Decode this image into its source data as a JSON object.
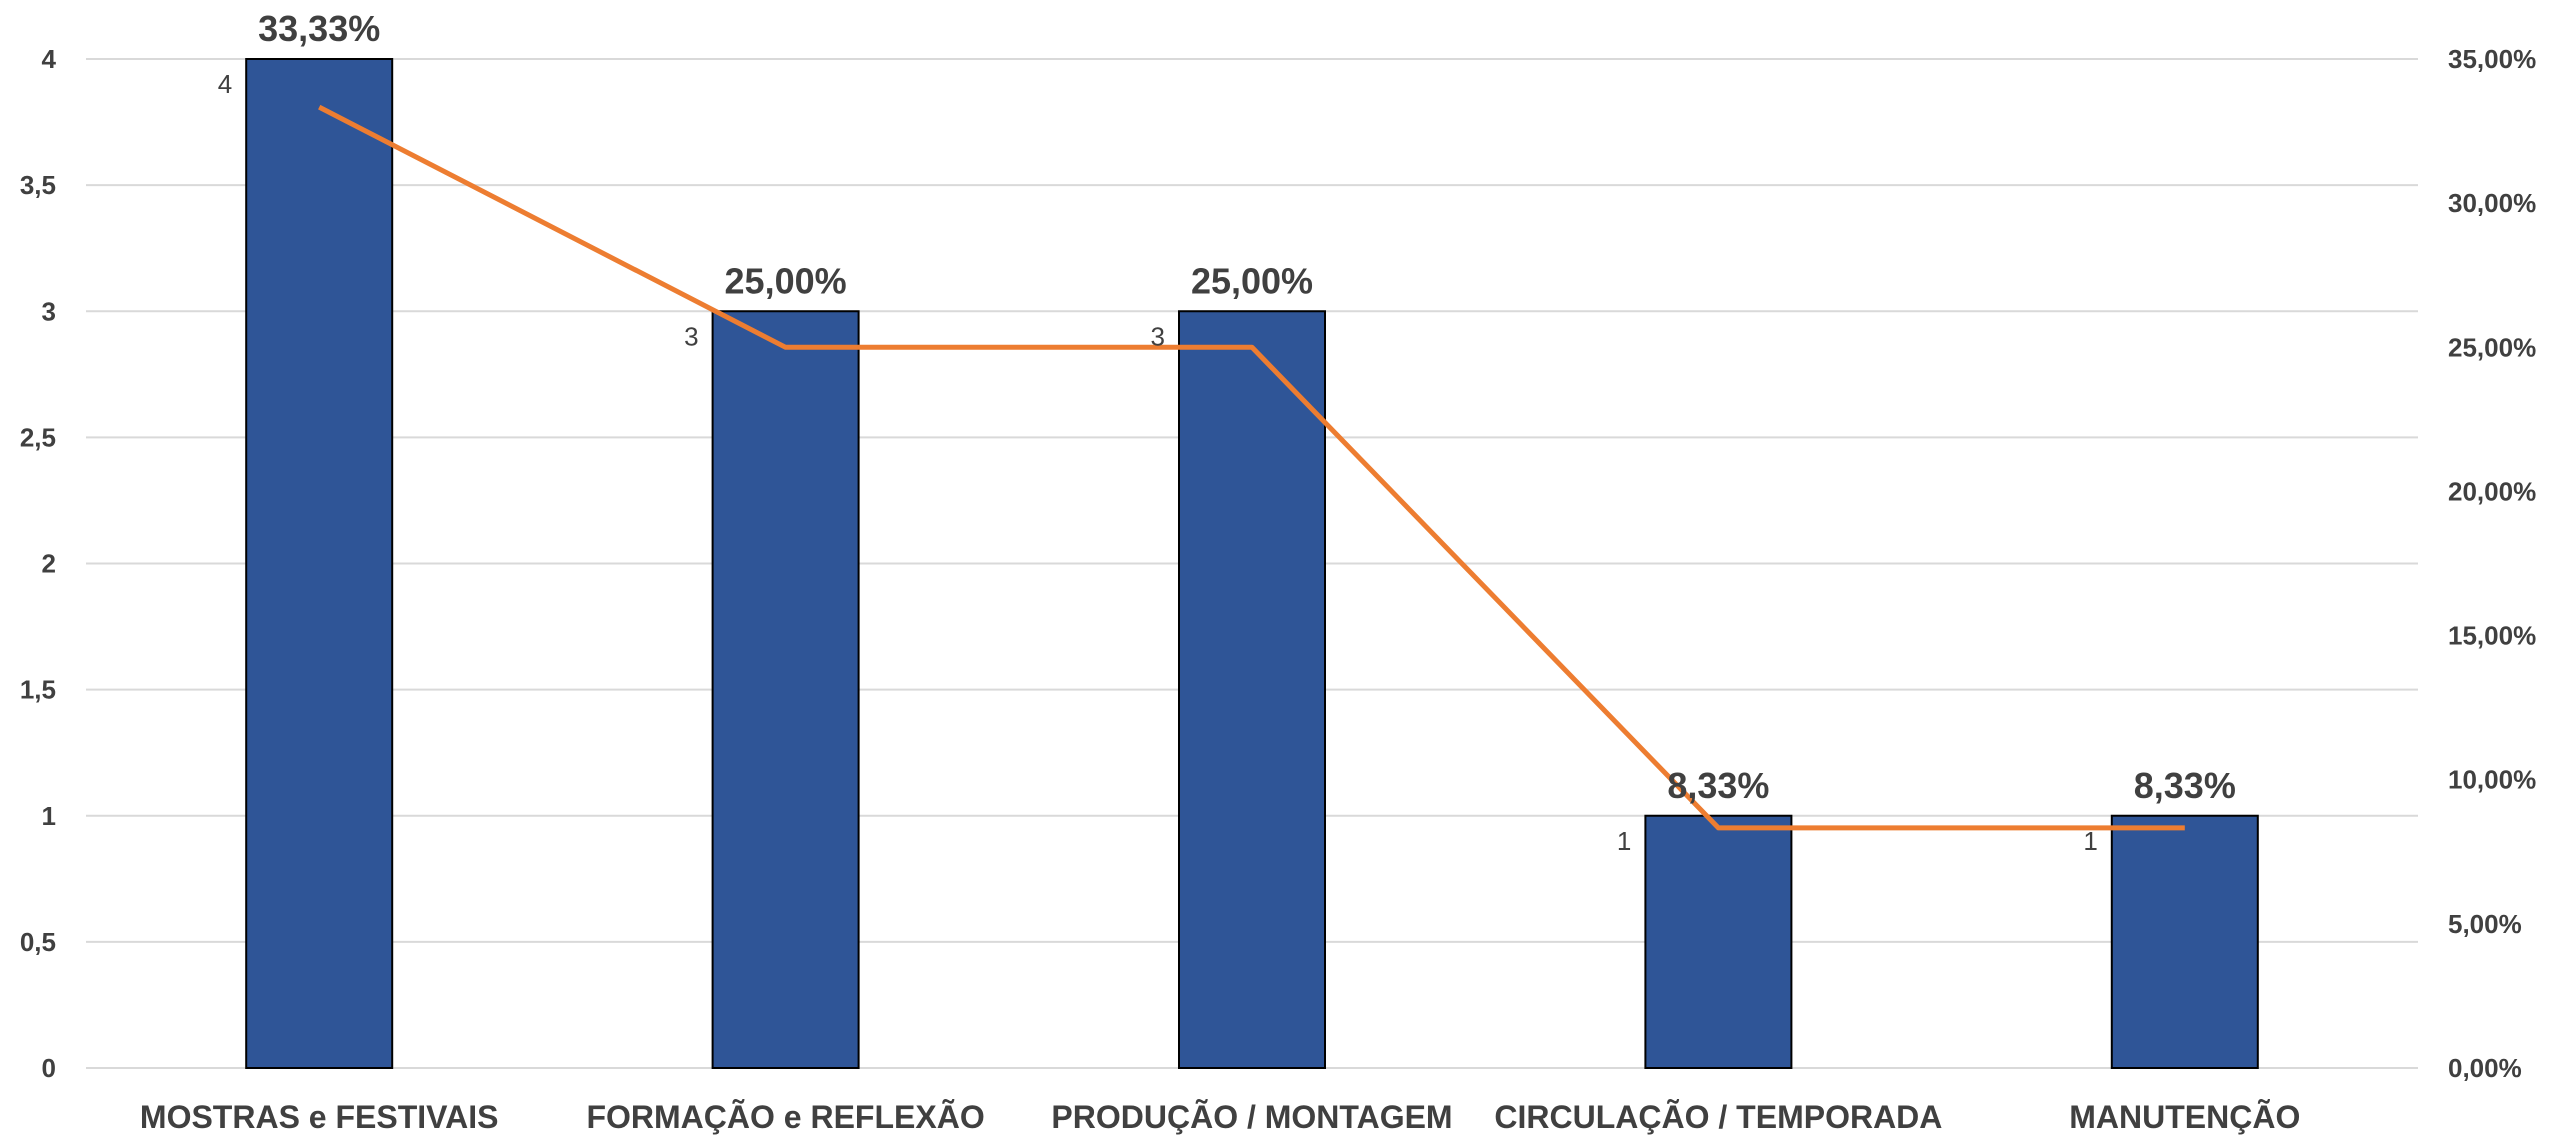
{
  "chart_data": {
    "type": "bar",
    "categories": [
      "MOSTRAS e FESTIVAIS",
      "FORMAÇÃO e REFLEXÃO",
      "PRODUÇÃO / MONTAGEM",
      "CIRCULAÇÃO / TEMPORADA",
      "MANUTENÇÃO"
    ],
    "bar_values": [
      4,
      3,
      3,
      1,
      1
    ],
    "bar_labels": [
      "4",
      "3",
      "3",
      "1",
      "1"
    ],
    "line_values": [
      33.33,
      25.0,
      25.0,
      8.33,
      8.33
    ],
    "line_labels": [
      "33,33%",
      "25,00%",
      "25,00%",
      "8,33%",
      "8,33%"
    ],
    "y_left": {
      "min": 0,
      "max": 4,
      "ticks": [
        0,
        0.5,
        1,
        1.5,
        2,
        2.5,
        3,
        3.5,
        4
      ],
      "tick_labels": [
        "0",
        "0,5",
        "1",
        "1,5",
        "2",
        "2,5",
        "3",
        "3,5",
        "4"
      ]
    },
    "y_right": {
      "min": 0,
      "max": 35,
      "ticks": [
        0,
        5,
        10,
        15,
        20,
        25,
        30,
        35
      ],
      "tick_labels": [
        "0,00%",
        "5,00%",
        "10,00%",
        "15,00%",
        "20,00%",
        "25,00%",
        "30,00%",
        "35,00%"
      ]
    },
    "grid": true,
    "legend": "none",
    "colors": {
      "bar": "#2f5597",
      "bar_border": "#000000",
      "line": "#ed7d31",
      "grid": "#d9d9d9",
      "text": "#404040"
    }
  }
}
